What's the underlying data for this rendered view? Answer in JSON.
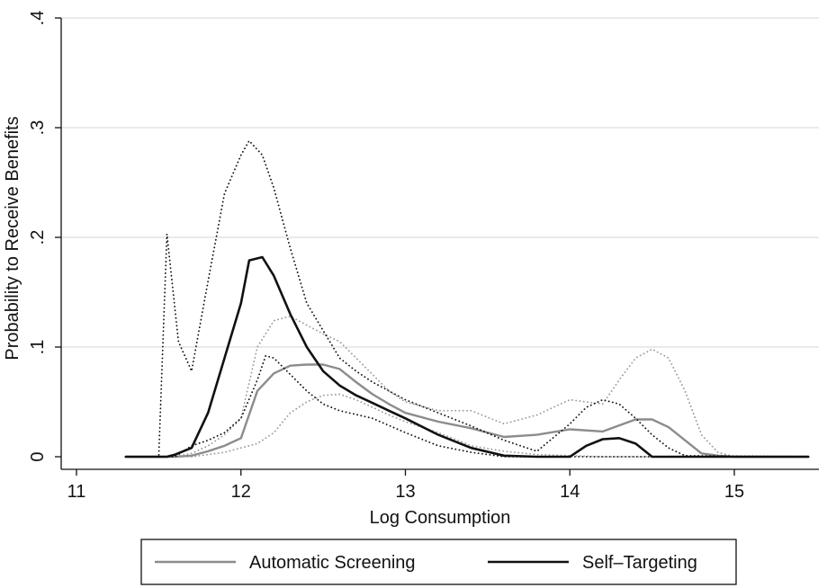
{
  "chart_data": {
    "type": "line",
    "title": "",
    "xlabel": "Log Consumption",
    "ylabel": "Probability to Receive Benefits",
    "xlim": [
      11,
      15.5
    ],
    "ylim": [
      0,
      0.4
    ],
    "x_ticks": [
      11,
      12,
      13,
      14,
      15
    ],
    "x_tick_labels": [
      "11",
      "12",
      "13",
      "14",
      "15"
    ],
    "y_ticks": [
      0,
      0.1,
      0.2,
      0.3,
      0.4
    ],
    "y_tick_labels": [
      "0",
      ".1",
      ".2",
      ".3",
      ".4"
    ],
    "grid": true,
    "legend_position": "bottom",
    "colors": {
      "automatic": "#8c8c8c",
      "self": "#111111",
      "grid": "#e3e3e3",
      "axis": "#111111"
    },
    "series": [
      {
        "name": "Automatic Screening",
        "style": "solid",
        "color": "#8c8c8c",
        "in_legend": true,
        "x": [
          11.3,
          11.6,
          11.7,
          11.8,
          11.9,
          12.0,
          12.1,
          12.2,
          12.3,
          12.4,
          12.5,
          12.6,
          12.7,
          12.8,
          12.9,
          13.0,
          13.2,
          13.4,
          13.6,
          13.8,
          14.0,
          14.2,
          14.4,
          14.5,
          14.6,
          14.7,
          14.8,
          14.9,
          15.0,
          15.45
        ],
        "y": [
          0,
          0,
          0.001,
          0.005,
          0.01,
          0.017,
          0.06,
          0.076,
          0.083,
          0.084,
          0.084,
          0.08,
          0.068,
          0.057,
          0.048,
          0.04,
          0.032,
          0.026,
          0.018,
          0.02,
          0.025,
          0.023,
          0.034,
          0.034,
          0.027,
          0.015,
          0.003,
          0.001,
          0,
          0
        ]
      },
      {
        "name": "Automatic Screening upper CI",
        "style": "dotted",
        "color": "#9a9a9a",
        "in_legend": false,
        "x": [
          11.3,
          11.6,
          11.7,
          11.8,
          11.9,
          12.0,
          12.1,
          12.2,
          12.3,
          12.4,
          12.5,
          12.6,
          12.7,
          12.8,
          12.9,
          13.0,
          13.2,
          13.4,
          13.6,
          13.8,
          14.0,
          14.2,
          14.3,
          14.4,
          14.5,
          14.6,
          14.7,
          14.8,
          14.9,
          15.0,
          15.45
        ],
        "y": [
          0,
          0,
          0.003,
          0.01,
          0.02,
          0.035,
          0.1,
          0.124,
          0.128,
          0.12,
          0.112,
          0.105,
          0.09,
          0.075,
          0.06,
          0.05,
          0.042,
          0.042,
          0.03,
          0.038,
          0.052,
          0.048,
          0.07,
          0.09,
          0.098,
          0.09,
          0.06,
          0.02,
          0.004,
          0,
          0
        ]
      },
      {
        "name": "Automatic Screening lower CI",
        "style": "dotted",
        "color": "#9a9a9a",
        "in_legend": false,
        "x": [
          11.3,
          11.6,
          11.7,
          11.8,
          11.9,
          12.0,
          12.1,
          12.2,
          12.3,
          12.4,
          12.5,
          12.6,
          12.7,
          12.8,
          12.9,
          13.0,
          13.2,
          13.4,
          13.6,
          13.8,
          14.0,
          14.2,
          14.4,
          14.5,
          14.6,
          14.7,
          14.8,
          15.0,
          15.45
        ],
        "y": [
          0,
          0,
          0,
          0.002,
          0.004,
          0.008,
          0.012,
          0.022,
          0.04,
          0.05,
          0.056,
          0.057,
          0.052,
          0.045,
          0.038,
          0.032,
          0.022,
          0.01,
          0.005,
          0.002,
          0.001,
          0,
          0,
          0,
          0,
          0,
          0,
          0,
          0
        ]
      },
      {
        "name": "Self-Targeting",
        "style": "solid",
        "color": "#111111",
        "in_legend": true,
        "x": [
          11.3,
          11.55,
          11.6,
          11.7,
          11.8,
          11.9,
          12.0,
          12.05,
          12.13,
          12.2,
          12.3,
          12.4,
          12.5,
          12.6,
          12.7,
          12.8,
          12.9,
          13.0,
          13.2,
          13.4,
          13.6,
          13.8,
          14.0,
          14.1,
          14.2,
          14.3,
          14.4,
          14.5,
          15.45
        ],
        "y": [
          0,
          0,
          0.002,
          0.008,
          0.04,
          0.09,
          0.14,
          0.179,
          0.182,
          0.165,
          0.13,
          0.1,
          0.078,
          0.065,
          0.056,
          0.049,
          0.042,
          0.035,
          0.02,
          0.008,
          0.001,
          0,
          0,
          0.01,
          0.016,
          0.017,
          0.012,
          0,
          0
        ]
      },
      {
        "name": "Self-Targeting upper CI",
        "style": "dotted",
        "color": "#111111",
        "in_legend": false,
        "x": [
          11.3,
          11.5,
          11.55,
          11.62,
          11.7,
          11.8,
          11.9,
          12.0,
          12.05,
          12.13,
          12.2,
          12.3,
          12.4,
          12.5,
          12.6,
          12.7,
          12.8,
          12.9,
          13.0,
          13.2,
          13.4,
          13.6,
          13.8,
          14.0,
          14.1,
          14.2,
          14.3,
          14.4,
          14.5,
          14.6,
          14.7,
          15.45
        ],
        "y": [
          0,
          0,
          0.203,
          0.105,
          0.078,
          0.16,
          0.24,
          0.275,
          0.288,
          0.275,
          0.245,
          0.19,
          0.14,
          0.115,
          0.09,
          0.078,
          0.068,
          0.06,
          0.052,
          0.04,
          0.028,
          0.015,
          0.005,
          0.03,
          0.045,
          0.052,
          0.048,
          0.035,
          0.02,
          0.008,
          0.001,
          0
        ]
      },
      {
        "name": "Self-Targeting lower CI",
        "style": "dotted",
        "color": "#111111",
        "in_legend": false,
        "x": [
          11.3,
          11.6,
          11.7,
          11.8,
          11.9,
          12.0,
          12.1,
          12.15,
          12.2,
          12.3,
          12.4,
          12.5,
          12.6,
          12.8,
          13.0,
          13.2,
          13.4,
          13.6,
          13.8,
          14.0,
          14.2,
          14.5,
          15.45
        ],
        "y": [
          0,
          0,
          0.01,
          0.015,
          0.022,
          0.035,
          0.07,
          0.092,
          0.09,
          0.075,
          0.06,
          0.048,
          0.042,
          0.035,
          0.022,
          0.01,
          0.004,
          0,
          0,
          0,
          0,
          0,
          0
        ]
      }
    ]
  }
}
